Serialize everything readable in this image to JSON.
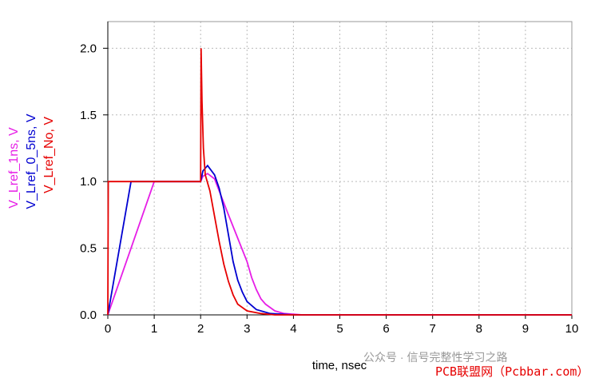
{
  "chart_data": {
    "type": "line",
    "xlabel": "time, nsec",
    "xlim": [
      0,
      10
    ],
    "xticks": [
      0,
      1,
      2,
      3,
      4,
      5,
      6,
      7,
      8,
      9,
      10
    ],
    "ylim": [
      0,
      2.2
    ],
    "yticks": [
      {
        "value": 0,
        "label": "0.0"
      },
      {
        "value": 0.5,
        "label": "0.5"
      },
      {
        "value": 1,
        "label": "1.0"
      },
      {
        "value": 1.5,
        "label": "1.5"
      },
      {
        "value": 2,
        "label": "2.0"
      }
    ],
    "grid": true,
    "series": [
      {
        "name": "V_Lref_1ns, V",
        "color": "#e61ee6",
        "x": [
          0,
          1,
          2,
          2.05,
          2.15,
          2.3,
          2.6,
          3,
          3.1,
          3.2,
          3.3,
          3.4,
          3.6,
          3.8,
          4.2,
          10
        ],
        "values": [
          0,
          1,
          1,
          1.04,
          1.06,
          1.02,
          0.75,
          0.4,
          0.28,
          0.19,
          0.12,
          0.08,
          0.03,
          0.01,
          0,
          0
        ]
      },
      {
        "name": "V_Lref_0_5ns, V",
        "color": "#0000d0",
        "x": [
          0,
          0.5,
          2,
          2.05,
          2.15,
          2.3,
          2.4,
          2.5,
          2.6,
          2.7,
          2.8,
          2.9,
          3,
          3.2,
          3.5,
          4,
          10
        ],
        "values": [
          0,
          1,
          1,
          1.08,
          1.12,
          1.05,
          0.95,
          0.8,
          0.6,
          0.4,
          0.26,
          0.17,
          0.1,
          0.04,
          0.01,
          0,
          0
        ]
      },
      {
        "name": "V_Lref_No, V",
        "color": "#e60000",
        "x": [
          0,
          0.01,
          2,
          2.01,
          2.03,
          2.06,
          2.1,
          2.2,
          2.3,
          2.4,
          2.5,
          2.6,
          2.7,
          2.8,
          3,
          3.3,
          3.6,
          10
        ],
        "values": [
          0,
          1,
          1,
          2,
          1.6,
          1.25,
          1.05,
          0.93,
          0.74,
          0.55,
          0.38,
          0.25,
          0.15,
          0.08,
          0.03,
          0.01,
          0,
          0
        ]
      }
    ],
    "watermarks": [
      "公众号 · 信号完整性学习之路",
      "PCB联盟网（Pcbbar.com）"
    ]
  }
}
